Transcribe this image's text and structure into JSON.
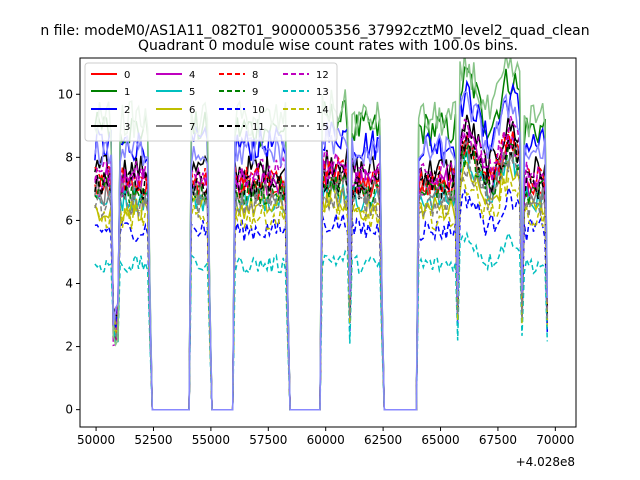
{
  "chart_data": {
    "type": "line",
    "suptitle": "n file: modeM0/AS1A11_082T01_9000005356_37992cztM0_level2_quad_clean",
    "title": "Quadrant 0 module wise count rates with 100.0s bins.",
    "xlabel": "",
    "ylabel": "",
    "x_offset_label": "+4.028e8",
    "xlim": [
      49300,
      70900
    ],
    "ylim": [
      -0.55,
      11.15
    ],
    "x_ticks": [
      50000,
      52500,
      55000,
      57500,
      60000,
      62500,
      65000,
      67500,
      70000
    ],
    "x_tick_labels": [
      "50000",
      "52500",
      "55000",
      "57500",
      "60000",
      "62500",
      "65000",
      "67500",
      "70000"
    ],
    "y_ticks": [
      0,
      2,
      4,
      6,
      8,
      10
    ],
    "y_tick_labels": [
      "0",
      "2",
      "4",
      "6",
      "8",
      "10"
    ],
    "grid": false,
    "legend_position": "top-left",
    "on_segments": [
      [
        49950,
        50850
      ],
      [
        50850,
        52350
      ],
      [
        54150,
        54950
      ],
      [
        56050,
        58350
      ],
      [
        59850,
        61050
      ],
      [
        61050,
        62450
      ],
      [
        64000,
        65750
      ],
      [
        65750,
        68550
      ],
      [
        68550,
        69700
      ]
    ],
    "series": [
      {
        "name": "0",
        "color": "#ff0000",
        "dash": "solid",
        "level": 7.0
      },
      {
        "name": "1",
        "color": "#008000",
        "dash": "solid",
        "level": 8.9
      },
      {
        "name": "2",
        "color": "#0000ff",
        "dash": "solid",
        "level": 8.4
      },
      {
        "name": "3",
        "color": "#000000",
        "dash": "solid",
        "level": 7.6
      },
      {
        "name": "4",
        "color": "#bf00bf",
        "dash": "solid",
        "level": 7.2
      },
      {
        "name": "5",
        "color": "#00bfbf",
        "dash": "solid",
        "level": 6.7
      },
      {
        "name": "6",
        "color": "#bfbf00",
        "dash": "solid",
        "level": 6.4
      },
      {
        "name": "7",
        "color": "#808080",
        "dash": "solid",
        "level": 6.9
      },
      {
        "name": "8",
        "color": "#ff0000",
        "dash": "dashed",
        "level": 7.3
      },
      {
        "name": "9",
        "color": "#008000",
        "dash": "dashed",
        "level": 6.9
      },
      {
        "name": "10",
        "color": "#0000ff",
        "dash": "dashed",
        "level": 5.7
      },
      {
        "name": "11",
        "color": "#000000",
        "dash": "dashed",
        "level": 7.1
      },
      {
        "name": "12",
        "color": "#bf00bf",
        "dash": "dashed",
        "level": 7.5
      },
      {
        "name": "13",
        "color": "#00bfbf",
        "dash": "dashed",
        "level": 4.6
      },
      {
        "name": "14",
        "color": "#bfbf00",
        "dash": "dashed",
        "level": 6.1
      },
      {
        "name": "15",
        "color": "#808080",
        "dash": "dashed",
        "level": 6.5
      }
    ],
    "extra_unlabeled_series": [
      {
        "color": "#88c488",
        "dash": "solid",
        "level": 9.2
      },
      {
        "color": "#8888ff",
        "dash": "solid",
        "level": 8.2
      }
    ]
  }
}
